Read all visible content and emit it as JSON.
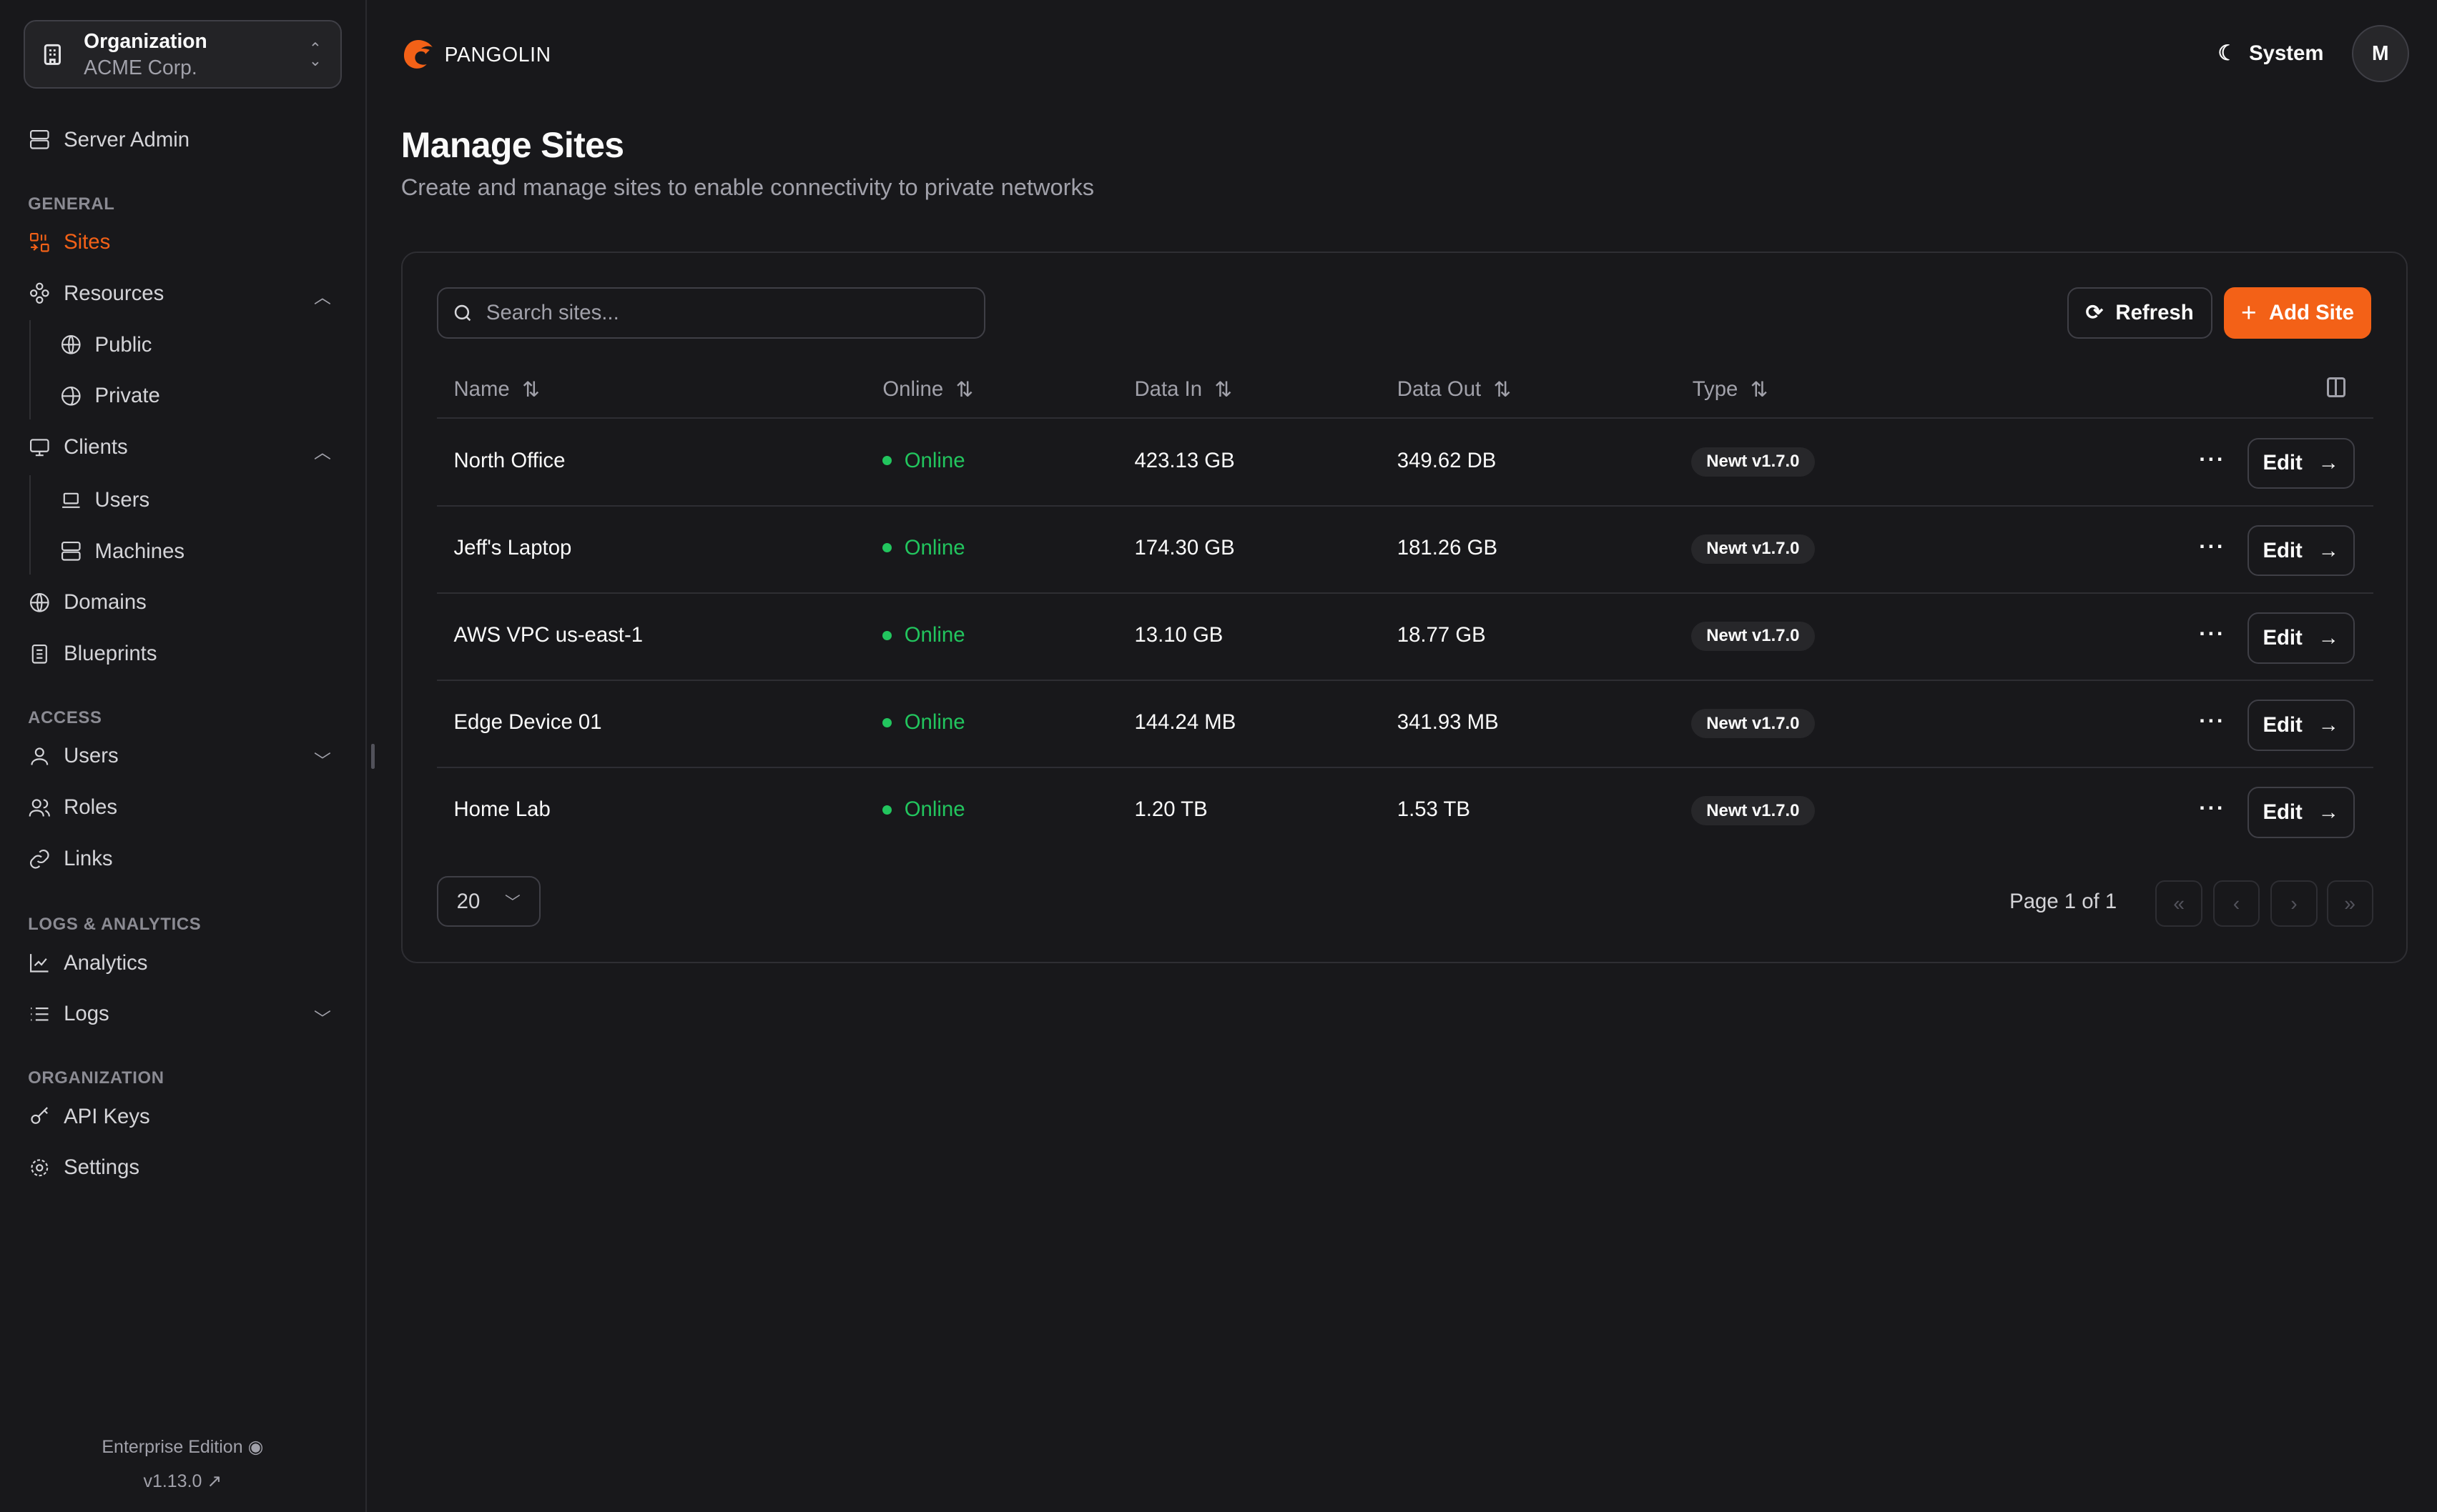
{
  "org": {
    "label": "Organization",
    "name": "ACME Corp."
  },
  "sidebar": {
    "server_admin": "Server Admin",
    "sections": {
      "general": "GENERAL",
      "access": "ACCESS",
      "logs": "LOGS & ANALYTICS",
      "organization": "ORGANIZATION"
    },
    "items": {
      "sites": "Sites",
      "resources": "Resources",
      "public": "Public",
      "private": "Private",
      "clients": "Clients",
      "users_client": "Users",
      "machines": "Machines",
      "domains": "Domains",
      "blueprints": "Blueprints",
      "users": "Users",
      "roles": "Roles",
      "links": "Links",
      "analytics": "Analytics",
      "logs": "Logs",
      "api_keys": "API Keys",
      "settings": "Settings"
    },
    "footer": {
      "edition": "Enterprise Edition",
      "version": "v1.13.0"
    }
  },
  "header": {
    "brand": "PANGOLIN",
    "theme": "System",
    "avatar": "M"
  },
  "page": {
    "title": "Manage Sites",
    "subtitle": "Create and manage sites to enable connectivity to private networks"
  },
  "toolbar": {
    "search_placeholder": "Search sites...",
    "refresh": "Refresh",
    "add": "Add Site"
  },
  "table": {
    "columns": [
      "Name",
      "Online",
      "Data In",
      "Data Out",
      "Type"
    ],
    "rows": [
      {
        "name": "North Office",
        "online": "Online",
        "data_in": "423.13 GB",
        "data_out": "349.62 DB",
        "type": "Newt v1.7.0",
        "action": "Edit"
      },
      {
        "name": "Jeff's Laptop",
        "online": "Online",
        "data_in": "174.30 GB",
        "data_out": "181.26 GB",
        "type": "Newt v1.7.0",
        "action": "Edit"
      },
      {
        "name": "AWS VPC us-east-1",
        "online": "Online",
        "data_in": "13.10 GB",
        "data_out": "18.77 GB",
        "type": "Newt v1.7.0",
        "action": "Edit"
      },
      {
        "name": "Edge Device 01",
        "online": "Online",
        "data_in": "144.24 MB",
        "data_out": "341.93 MB",
        "type": "Newt v1.7.0",
        "action": "Edit"
      },
      {
        "name": "Home Lab",
        "online": "Online",
        "data_in": "1.20 TB",
        "data_out": "1.53 TB",
        "type": "Newt v1.7.0",
        "action": "Edit"
      }
    ]
  },
  "pagination": {
    "page_size": "20",
    "page_info": "Page 1 of 1"
  },
  "colors": {
    "accent": "#f36117",
    "online": "#22c55e",
    "background": "#18181b"
  }
}
